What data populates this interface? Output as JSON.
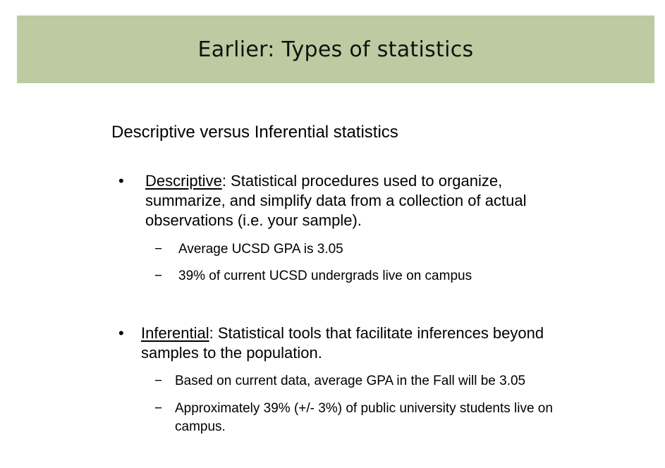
{
  "slide": {
    "title": "Earlier: Types of statistics",
    "subtitle": "Descriptive versus Inferential statistics",
    "bullets": [
      {
        "term": "Descriptive",
        "rest": ": Statistical procedures used to organize, summarize, and simplify data from a collection of actual observations (i.e. your sample).",
        "subitems": [
          "Average UCSD GPA is 3.05",
          "39% of current UCSD undergrads live on campus"
        ]
      },
      {
        "term": "Inferential",
        "rest": ": Statistical tools that facilitate inferences beyond samples to the population.",
        "subitems": [
          "Based on current data, average GPA in the Fall will be 3.05",
          "Approximately 39% (+/- 3%) of public university students live on campus."
        ]
      }
    ],
    "bullet_symbol": "•",
    "sub_symbol": "−",
    "colors": {
      "title_bar": "#bccba1",
      "text": "#000000"
    }
  }
}
